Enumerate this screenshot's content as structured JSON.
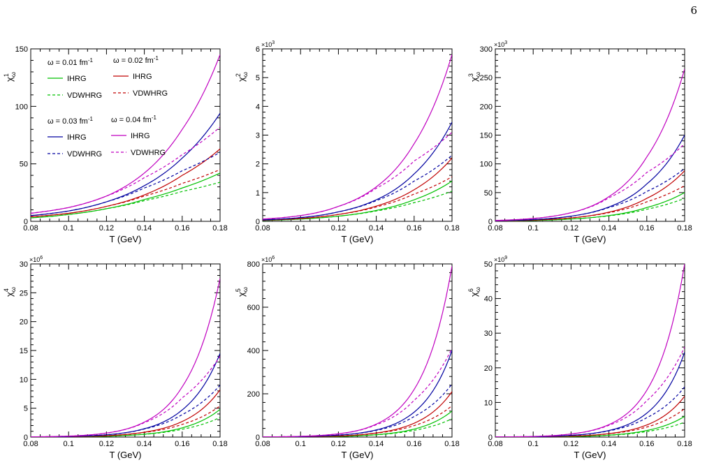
{
  "page": {
    "number": "6"
  },
  "legend": {
    "groups": [
      {
        "header": "ω = 0.01 fm",
        "header_sup": "-1",
        "series": [
          "IHRG",
          "VDWHRG"
        ],
        "color": "#00c000"
      },
      {
        "header": "ω = 0.02 fm",
        "header_sup": "-1",
        "series": [
          "IHRG",
          "VDWHRG"
        ],
        "color": "#c00000"
      },
      {
        "header": "ω = 0.03 fm",
        "header_sup": "-1",
        "series": [
          "IHRG",
          "VDWHRG"
        ],
        "color": "#0000a0"
      },
      {
        "header": "ω = 0.04 fm",
        "header_sup": "-1",
        "series": [
          "IHRG",
          "VDWHRG"
        ],
        "color": "#c000c0"
      }
    ]
  },
  "chart_data": [
    {
      "type": "line",
      "panel": "chi1",
      "xlabel": "T (GeV)",
      "ylabel_base": "χ",
      "ylabel_sup": "1",
      "ylabel_sub": "ω",
      "xlim": [
        0.08,
        0.18
      ],
      "ylim": [
        0,
        150
      ],
      "y_multiplier": "",
      "xticks": [
        "0.08",
        "0.1",
        "0.12",
        "0.14",
        "0.16",
        "0.18"
      ],
      "yticks": [
        "0",
        "50",
        "100",
        "150"
      ],
      "x": [
        0.08,
        0.1,
        0.12,
        0.14,
        0.16,
        0.18
      ],
      "series": [
        {
          "name": "ω = 0.01 fm-1 IHRG",
          "color": "#00c000",
          "dash": false,
          "values": [
            3,
            6,
            11,
            19,
            29,
            42
          ]
        },
        {
          "name": "ω = 0.01 fm-1 VDWHRG",
          "color": "#00c000",
          "dash": true,
          "values": [
            3,
            6,
            11,
            18,
            26,
            34
          ]
        },
        {
          "name": "ω = 0.02 fm-1 IHRG",
          "color": "#c00000",
          "dash": false,
          "values": [
            4,
            7,
            13,
            23,
            40,
            63
          ]
        },
        {
          "name": "ω = 0.02 fm-1 VDWHRG",
          "color": "#c00000",
          "dash": true,
          "values": [
            4,
            7,
            13,
            22,
            33,
            45
          ]
        },
        {
          "name": "ω = 0.03 fm-1 IHRG",
          "color": "#0000a0",
          "dash": false,
          "values": [
            5,
            9,
            17,
            31,
            55,
            94
          ]
        },
        {
          "name": "ω = 0.03 fm-1 VDWHRG",
          "color": "#0000a0",
          "dash": true,
          "values": [
            5,
            9,
            17,
            29,
            44,
            60
          ]
        },
        {
          "name": "ω = 0.04 fm-1 IHRG",
          "color": "#c000c0",
          "dash": false,
          "values": [
            7,
            12,
            22,
            42,
            80,
            145
          ]
        },
        {
          "name": "ω = 0.04 fm-1 VDWHRG",
          "color": "#c000c0",
          "dash": true,
          "values": [
            7,
            12,
            22,
            38,
            58,
            82
          ]
        }
      ]
    },
    {
      "type": "line",
      "panel": "chi2",
      "xlabel": "T (GeV)",
      "ylabel_base": "χ",
      "ylabel_sup": "2",
      "ylabel_sub": "ω",
      "xlim": [
        0.08,
        0.18
      ],
      "ylim": [
        0,
        6
      ],
      "y_multiplier": "×10",
      "y_multiplier_exp": "3",
      "xticks": [
        "0.08",
        "0.1",
        "0.12",
        "0.14",
        "0.16",
        "0.18"
      ],
      "yticks": [
        "0",
        "1",
        "2",
        "3",
        "4",
        "5",
        "6"
      ],
      "x": [
        0.08,
        0.1,
        0.12,
        0.14,
        0.16,
        0.18
      ],
      "series": [
        {
          "name": "ω = 0.01 fm-1 IHRG",
          "color": "#00c000",
          "dash": false,
          "values": [
            0.03,
            0.08,
            0.18,
            0.38,
            0.75,
            1.4
          ]
        },
        {
          "name": "ω = 0.01 fm-1 VDWHRG",
          "color": "#00c000",
          "dash": true,
          "values": [
            0.03,
            0.08,
            0.18,
            0.36,
            0.65,
            1.05
          ]
        },
        {
          "name": "ω = 0.02 fm-1 IHRG",
          "color": "#c00000",
          "dash": false,
          "values": [
            0.04,
            0.1,
            0.24,
            0.53,
            1.1,
            2.2
          ]
        },
        {
          "name": "ω = 0.02 fm-1 VDWHRG",
          "color": "#c00000",
          "dash": true,
          "values": [
            0.04,
            0.1,
            0.24,
            0.5,
            0.95,
            1.55
          ]
        },
        {
          "name": "ω = 0.03 fm-1 IHRG",
          "color": "#0000a0",
          "dash": false,
          "values": [
            0.05,
            0.13,
            0.33,
            0.75,
            1.65,
            3.45
          ]
        },
        {
          "name": "ω = 0.03 fm-1 VDWHRG",
          "color": "#0000a0",
          "dash": true,
          "values": [
            0.05,
            0.13,
            0.33,
            0.72,
            1.4,
            2.3
          ]
        },
        {
          "name": "ω = 0.04 fm-1 IHRG",
          "color": "#c000c0",
          "dash": false,
          "values": [
            0.08,
            0.2,
            0.52,
            1.2,
            2.7,
            5.8
          ]
        },
        {
          "name": "ω = 0.04 fm-1 VDWHRG",
          "color": "#c000c0",
          "dash": true,
          "values": [
            0.08,
            0.2,
            0.52,
            1.15,
            2.1,
            3.1
          ]
        }
      ]
    },
    {
      "type": "line",
      "panel": "chi3",
      "xlabel": "T (GeV)",
      "ylabel_base": "χ",
      "ylabel_sup": "3",
      "ylabel_sub": "ω",
      "xlim": [
        0.08,
        0.18
      ],
      "ylim": [
        0,
        300
      ],
      "y_multiplier": "×10",
      "y_multiplier_exp": "3",
      "xticks": [
        "0.08",
        "0.1",
        "0.12",
        "0.14",
        "0.16",
        "0.18"
      ],
      "yticks": [
        "0",
        "50",
        "100",
        "150",
        "200",
        "250",
        "300"
      ],
      "x": [
        0.08,
        0.1,
        0.12,
        0.14,
        0.16,
        0.18
      ],
      "series": [
        {
          "name": "ω = 0.01 fm-1 IHRG",
          "color": "#00c000",
          "dash": false,
          "values": [
            0.5,
            1.5,
            4,
            10,
            24,
            50
          ]
        },
        {
          "name": "ω = 0.01 fm-1 VDWHRG",
          "color": "#00c000",
          "dash": true,
          "values": [
            0.5,
            1.5,
            4,
            9.5,
            21,
            40
          ]
        },
        {
          "name": "ω = 0.02 fm-1 IHRG",
          "color": "#c00000",
          "dash": false,
          "values": [
            0.7,
            2.2,
            6,
            16,
            40,
            88
          ]
        },
        {
          "name": "ω = 0.02 fm-1 VDWHRG",
          "color": "#c00000",
          "dash": true,
          "values": [
            0.7,
            2.2,
            6,
            15,
            34,
            62
          ]
        },
        {
          "name": "ω = 0.03 fm-1 IHRG",
          "color": "#0000a0",
          "dash": false,
          "values": [
            1,
            3,
            9,
            25,
            65,
            150
          ]
        },
        {
          "name": "ω = 0.03 fm-1 VDWHRG",
          "color": "#0000a0",
          "dash": true,
          "values": [
            1,
            3,
            9,
            24,
            52,
            92
          ]
        },
        {
          "name": "ω = 0.04 fm-1 IHRG",
          "color": "#c000c0",
          "dash": false,
          "values": [
            1.5,
            5,
            15,
            43,
            112,
            265
          ]
        },
        {
          "name": "ω = 0.04 fm-1 VDWHRG",
          "color": "#c000c0",
          "dash": true,
          "values": [
            1.5,
            5,
            15,
            41,
            85,
            135
          ]
        }
      ]
    },
    {
      "type": "line",
      "panel": "chi4",
      "xlabel": "T (GeV)",
      "ylabel_base": "χ",
      "ylabel_sup": "4",
      "ylabel_sub": "ω",
      "xlim": [
        0.08,
        0.18
      ],
      "ylim": [
        0,
        30
      ],
      "y_multiplier": "×10",
      "y_multiplier_exp": "6",
      "xticks": [
        "0.08",
        "0.1",
        "0.12",
        "0.14",
        "0.16",
        "0.18"
      ],
      "yticks": [
        "0",
        "5",
        "10",
        "15",
        "20",
        "25",
        "30"
      ],
      "x": [
        0.08,
        0.1,
        0.12,
        0.14,
        0.16,
        0.18
      ],
      "series": [
        {
          "name": "ω = 0.01 fm-1 IHRG",
          "color": "#00c000",
          "dash": false,
          "values": [
            0.01,
            0.04,
            0.15,
            0.5,
            1.6,
            4.8
          ]
        },
        {
          "name": "ω = 0.01 fm-1 VDWHRG",
          "color": "#00c000",
          "dash": true,
          "values": [
            0.01,
            0.04,
            0.15,
            0.48,
            1.35,
            3.4
          ]
        },
        {
          "name": "ω = 0.02 fm-1 IHRG",
          "color": "#c00000",
          "dash": false,
          "values": [
            0.015,
            0.06,
            0.24,
            0.85,
            2.7,
            8.2
          ]
        },
        {
          "name": "ω = 0.02 fm-1 VDWHRG",
          "color": "#c00000",
          "dash": true,
          "values": [
            0.015,
            0.06,
            0.24,
            0.8,
            2.2,
            5.4
          ]
        },
        {
          "name": "ω = 0.03 fm-1 IHRG",
          "color": "#0000a0",
          "dash": false,
          "values": [
            0.025,
            0.1,
            0.4,
            1.45,
            4.7,
            14.5
          ]
        },
        {
          "name": "ω = 0.03 fm-1 VDWHRG",
          "color": "#0000a0",
          "dash": true,
          "values": [
            0.025,
            0.1,
            0.4,
            1.4,
            3.9,
            9
          ]
        },
        {
          "name": "ω = 0.04 fm-1 IHRG",
          "color": "#c000c0",
          "dash": false,
          "values": [
            0.04,
            0.17,
            0.7,
            2.6,
            8.7,
            27.5
          ]
        },
        {
          "name": "ω = 0.04 fm-1 VDWHRG",
          "color": "#c000c0",
          "dash": true,
          "values": [
            0.04,
            0.17,
            0.7,
            2.5,
            6.8,
            14
          ]
        }
      ]
    },
    {
      "type": "line",
      "panel": "chi5",
      "xlabel": "T (GeV)",
      "ylabel_base": "χ",
      "ylabel_sup": "5",
      "ylabel_sub": "ω",
      "xlim": [
        0.08,
        0.18
      ],
      "ylim": [
        0,
        800
      ],
      "y_multiplier": "×10",
      "y_multiplier_exp": "6",
      "xticks": [
        "0.08",
        "0.1",
        "0.12",
        "0.14",
        "0.16",
        "0.18"
      ],
      "yticks": [
        "0",
        "200",
        "400",
        "600",
        "800"
      ],
      "x": [
        0.08,
        0.1,
        0.12,
        0.14,
        0.16,
        0.18
      ],
      "series": [
        {
          "name": "ω = 0.01 fm-1 IHRG",
          "color": "#00c000",
          "dash": false,
          "values": [
            0.2,
            0.8,
            3,
            11,
            37,
            120
          ]
        },
        {
          "name": "ω = 0.01 fm-1 VDWHRG",
          "color": "#00c000",
          "dash": true,
          "values": [
            0.2,
            0.8,
            3,
            10.5,
            31,
            85
          ]
        },
        {
          "name": "ω = 0.02 fm-1 IHRG",
          "color": "#c00000",
          "dash": false,
          "values": [
            0.3,
            1.3,
            5,
            19,
            64,
            210
          ]
        },
        {
          "name": "ω = 0.02 fm-1 VDWHRG",
          "color": "#c00000",
          "dash": true,
          "values": [
            0.3,
            1.3,
            5,
            18,
            53,
            145
          ]
        },
        {
          "name": "ω = 0.03 fm-1 IHRG",
          "color": "#0000a0",
          "dash": false,
          "values": [
            0.5,
            2.2,
            9,
            33,
            115,
            400
          ]
        },
        {
          "name": "ω = 0.03 fm-1 VDWHRG",
          "color": "#0000a0",
          "dash": true,
          "values": [
            0.5,
            2.2,
            9,
            31,
            95,
            245
          ]
        },
        {
          "name": "ω = 0.04 fm-1 IHRG",
          "color": "#c000c0",
          "dash": false,
          "values": [
            0.8,
            3.5,
            15,
            60,
            220,
            790
          ]
        },
        {
          "name": "ω = 0.04 fm-1 VDWHRG",
          "color": "#c000c0",
          "dash": true,
          "values": [
            0.8,
            3.5,
            15,
            57,
            170,
            410
          ]
        }
      ]
    },
    {
      "type": "line",
      "panel": "chi6",
      "xlabel": "T (GeV)",
      "ylabel_base": "χ",
      "ylabel_sup": "6",
      "ylabel_sub": "ω",
      "xlim": [
        0.08,
        0.18
      ],
      "ylim": [
        0,
        50
      ],
      "y_multiplier": "×10",
      "y_multiplier_exp": "9",
      "xticks": [
        "0.08",
        "0.1",
        "0.12",
        "0.14",
        "0.16",
        "0.18"
      ],
      "yticks": [
        "0",
        "10",
        "20",
        "30",
        "40",
        "50"
      ],
      "x": [
        0.08,
        0.1,
        0.12,
        0.14,
        0.16,
        0.18
      ],
      "series": [
        {
          "name": "ω = 0.01 fm-1 IHRG",
          "color": "#00c000",
          "dash": false,
          "values": [
            0.01,
            0.03,
            0.15,
            0.55,
            1.9,
            6
          ]
        },
        {
          "name": "ω = 0.01 fm-1 VDWHRG",
          "color": "#00c000",
          "dash": true,
          "values": [
            0.01,
            0.03,
            0.15,
            0.52,
            1.6,
            4.3
          ]
        },
        {
          "name": "ω = 0.02 fm-1 IHRG",
          "color": "#c00000",
          "dash": false,
          "values": [
            0.015,
            0.06,
            0.27,
            1.0,
            3.5,
            11.8
          ]
        },
        {
          "name": "ω = 0.02 fm-1 VDWHRG",
          "color": "#c00000",
          "dash": true,
          "values": [
            0.015,
            0.06,
            0.27,
            0.95,
            2.9,
            8.2
          ]
        },
        {
          "name": "ω = 0.03 fm-1 IHRG",
          "color": "#0000a0",
          "dash": false,
          "values": [
            0.025,
            0.1,
            0.5,
            1.9,
            6.9,
            24.5
          ]
        },
        {
          "name": "ω = 0.03 fm-1 VDWHRG",
          "color": "#0000a0",
          "dash": true,
          "values": [
            0.025,
            0.1,
            0.5,
            1.8,
            5.6,
            14.5
          ]
        },
        {
          "name": "ω = 0.04 fm-1 IHRG",
          "color": "#c000c0",
          "dash": false,
          "values": [
            0.04,
            0.18,
            0.9,
            3.6,
            13.5,
            50
          ]
        },
        {
          "name": "ω = 0.04 fm-1 VDWHRG",
          "color": "#c000c0",
          "dash": true,
          "values": [
            0.04,
            0.18,
            0.9,
            3.4,
            10.5,
            26
          ]
        }
      ]
    }
  ]
}
